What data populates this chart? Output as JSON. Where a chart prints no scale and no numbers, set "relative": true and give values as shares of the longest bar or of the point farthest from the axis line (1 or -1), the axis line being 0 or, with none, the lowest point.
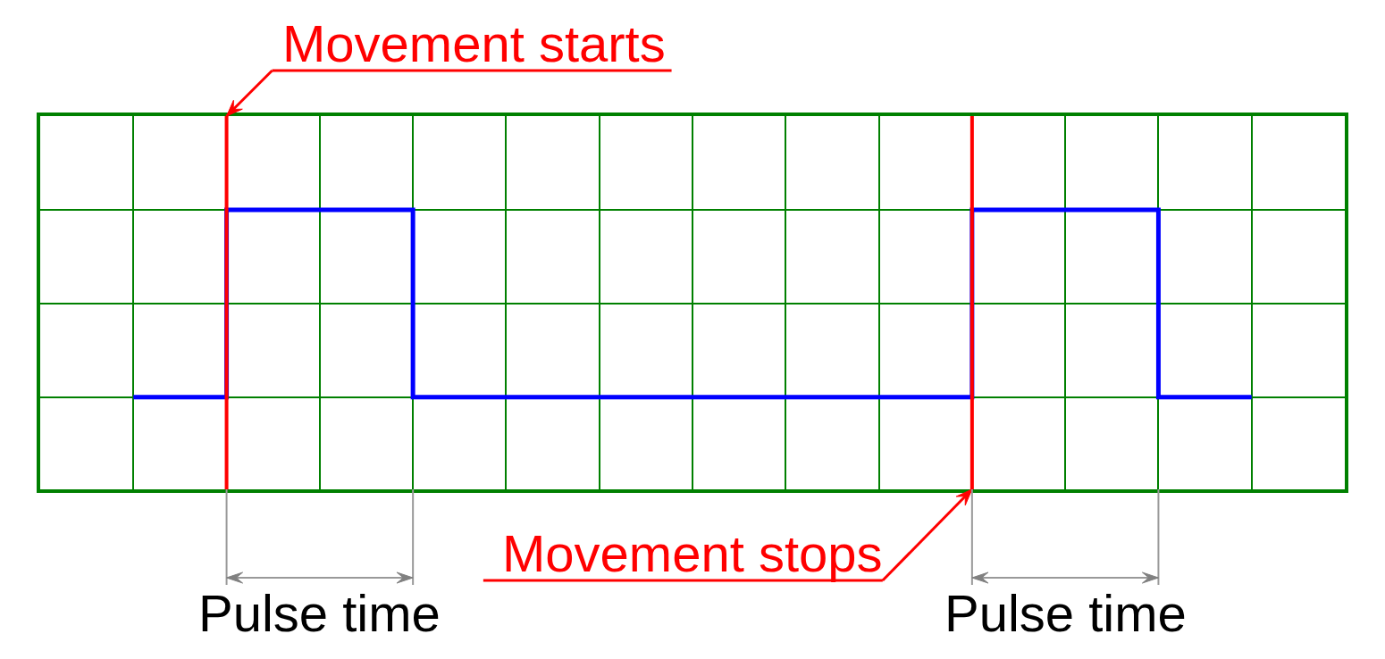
{
  "chart_data": {
    "type": "step",
    "categories": [
      null,
      null,
      null,
      null,
      null,
      null,
      null,
      null,
      null,
      null,
      null,
      null,
      null,
      null,
      null
    ],
    "series": [
      {
        "color": "#0000ff",
        "values": [
          null,
          0.33,
          1,
          1,
          0.33,
          0.33,
          0.33,
          0.33,
          0.33,
          0.33,
          1,
          1,
          0.33,
          0.33,
          null
        ]
      }
    ],
    "relative": true,
    "grid": true,
    "annotations": [
      "Movement starts",
      "Movement stops",
      "Pulse time",
      "Pulse time"
    ]
  }
}
